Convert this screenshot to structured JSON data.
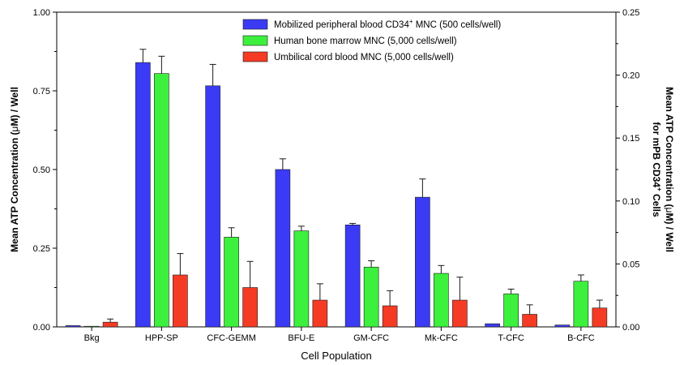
{
  "chart_data": {
    "type": "bar",
    "categories": [
      "Bkg",
      "HPP-SP",
      "CFC-GEMM",
      "BFU-E",
      "GM-CFC",
      "Mk-CFC",
      "T-CFC",
      "B-CFC"
    ],
    "series": [
      {
        "name": "Mobilized peripheral blood CD34",
        "name_sup": "+",
        "name_suffix": " MNC (500 cells/well)",
        "axis": "right",
        "color": "#3b3bf5",
        "values": [
          0.001,
          0.21,
          0.1915,
          0.125,
          0.081,
          0.103,
          0.0025,
          0.0015
        ],
        "errors": [
          0,
          0.0105,
          0.017,
          0.0085,
          0.0012,
          0.0145,
          0,
          0
        ]
      },
      {
        "name": "Human bone marrow MNC (5,000 cells/well)",
        "axis": "left",
        "color": "#3df03d",
        "values": [
          0,
          0.805,
          0.285,
          0.305,
          0.19,
          0.17,
          0.105,
          0.145
        ],
        "errors": [
          0,
          0.055,
          0.03,
          0.015,
          0.02,
          0.025,
          0.015,
          0.02
        ]
      },
      {
        "name": "Umbilical cord blood MNC (5,000 cells/well)",
        "axis": "left",
        "color": "#f53b24",
        "values": [
          0.015,
          0.165,
          0.125,
          0.085,
          0.067,
          0.085,
          0.04,
          0.06
        ],
        "errors": [
          0.01,
          0.068,
          0.083,
          0.052,
          0.048,
          0.073,
          0.03,
          0.025
        ]
      }
    ],
    "xlabel": "Cell Population",
    "ylabel_left": {
      "pre": "Mean ATP Concentration (",
      "greek": "μ",
      "post": "M) / Well"
    },
    "ylabel_right": {
      "line1_pre": "Mean ATP Concentration (",
      "line1_greek": "μ",
      "line1_post": "M) / Well",
      "line2_pre": "for mPB CD34",
      "line2_sup": "+",
      "line2_post": " Cells"
    },
    "ylim_left": [
      0,
      1.0
    ],
    "ylim_right": [
      0,
      0.25
    ],
    "yticks_left": [
      "0.00",
      "0.25",
      "0.50",
      "0.75",
      "1.00"
    ],
    "yticks_right": [
      "0.00",
      "0.05",
      "0.10",
      "0.15",
      "0.20",
      "0.25"
    ],
    "grid": false,
    "legend_position": "top-right"
  }
}
